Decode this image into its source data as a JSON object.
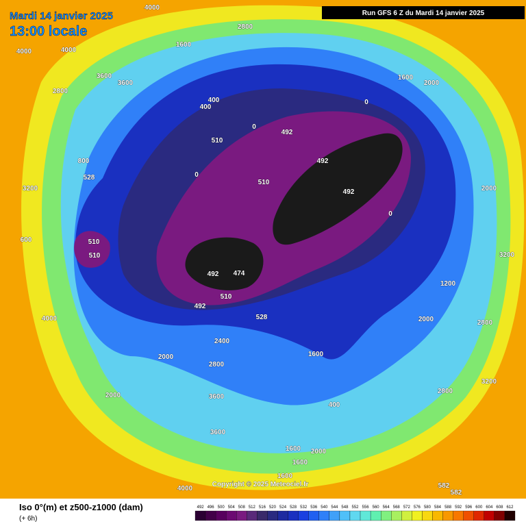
{
  "header": {
    "date": "Mardi 14 janvier 2025",
    "time": "13:00 locale",
    "run": "Run GFS 6 Z du Mardi 14 janvier 2025"
  },
  "copyright": "Copyright © 2025 Meteociel.fr",
  "legend": {
    "title": "Iso 0°(m) et z500-z1000 (dam)",
    "step": "(+ 6h)",
    "scale": [
      492,
      496,
      500,
      504,
      508,
      512,
      516,
      520,
      524,
      528,
      532,
      536,
      540,
      544,
      548,
      552,
      556,
      560,
      564,
      568,
      572,
      576,
      580,
      584,
      588,
      592,
      596,
      600,
      604,
      608,
      612
    ],
    "colors": [
      "#2b0033",
      "#420048",
      "#58005e",
      "#6c0a72",
      "#7a1a80",
      "#5a2a7a",
      "#3a2a6a",
      "#2a2a80",
      "#1e2aa0",
      "#1a30c0",
      "#1a40e0",
      "#2060f0",
      "#3080f8",
      "#40a0f8",
      "#50c0f8",
      "#60d8f0",
      "#60e8d8",
      "#60f0b0",
      "#80f080",
      "#a8f060",
      "#d0f040",
      "#f0f020",
      "#f8d810",
      "#f8b800",
      "#f89800",
      "#f87800",
      "#f05000",
      "#e02800",
      "#c00000",
      "#800000",
      "#200000"
    ]
  },
  "map_labels": [
    4000,
    2800,
    1600,
    4000,
    4000,
    3600,
    3600,
    2800,
    400,
    400,
    0,
    492,
    510,
    0,
    1600,
    2000,
    492,
    510,
    492,
    0,
    528,
    800,
    3200,
    510,
    510,
    492,
    474,
    492,
    510,
    528,
    2800,
    2000,
    2000,
    2800,
    2400,
    3600,
    2000,
    3600,
    1600,
    2000,
    1600,
    1600,
    4000,
    2800,
    3200,
    582,
    582,
    600,
    4000,
    1200,
    3200,
    2000,
    1600,
    0,
    400
  ]
}
